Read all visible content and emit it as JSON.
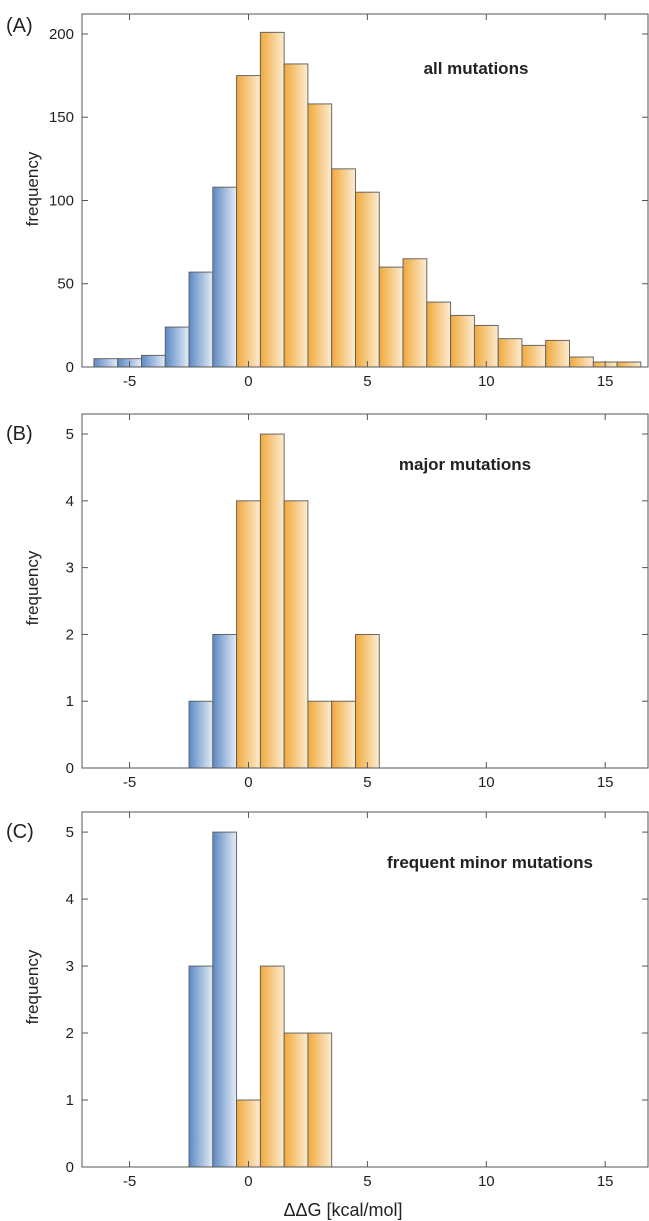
{
  "figure": {
    "colors": {
      "negative_bar_dark": "#5b89c4",
      "negative_bar_light": "#e4ecf6",
      "positive_bar_dark": "#f0a93c",
      "positive_bar_light": "#fcecd2",
      "bar_stroke": "#5a5a5a",
      "frame": "#555555"
    }
  },
  "chart_data": [
    {
      "type": "bar",
      "panel_label": "(A)",
      "title": "all mutations",
      "xlabel": "",
      "ylabel": "frequency",
      "xlim": [
        -7,
        16.8
      ],
      "ylim": [
        0,
        212
      ],
      "xticks": [
        -5,
        0,
        5,
        10,
        15
      ],
      "yticks": [
        0,
        50,
        100,
        150,
        200
      ],
      "grid": false,
      "bin_width": 1,
      "bins": [
        {
          "x0": -6.5,
          "x1": -5.5,
          "value": 5
        },
        {
          "x0": -5.5,
          "x1": -4.5,
          "value": 5
        },
        {
          "x0": -4.5,
          "x1": -3.5,
          "value": 7
        },
        {
          "x0": -3.5,
          "x1": -2.5,
          "value": 24
        },
        {
          "x0": -2.5,
          "x1": -1.5,
          "value": 57
        },
        {
          "x0": -1.5,
          "x1": -0.5,
          "value": 108
        },
        {
          "x0": -0.5,
          "x1": 0.5,
          "value": 175
        },
        {
          "x0": 0.5,
          "x1": 1.5,
          "value": 201
        },
        {
          "x0": 1.5,
          "x1": 2.5,
          "value": 182
        },
        {
          "x0": 2.5,
          "x1": 3.5,
          "value": 158
        },
        {
          "x0": 3.5,
          "x1": 4.5,
          "value": 119
        },
        {
          "x0": 4.5,
          "x1": 5.5,
          "value": 105
        },
        {
          "x0": 5.5,
          "x1": 6.5,
          "value": 60
        },
        {
          "x0": 6.5,
          "x1": 7.5,
          "value": 65
        },
        {
          "x0": 7.5,
          "x1": 8.5,
          "value": 39
        },
        {
          "x0": 8.5,
          "x1": 9.5,
          "value": 31
        },
        {
          "x0": 9.5,
          "x1": 10.5,
          "value": 25
        },
        {
          "x0": 10.5,
          "x1": 11.5,
          "value": 17
        },
        {
          "x0": 11.5,
          "x1": 12.5,
          "value": 13
        },
        {
          "x0": 12.5,
          "x1": 13.5,
          "value": 16
        },
        {
          "x0": 13.5,
          "x1": 14.5,
          "value": 6
        },
        {
          "x0": 14.5,
          "x1": 15.5,
          "value": 3
        },
        {
          "x0": 15.5,
          "x1": 16.5,
          "value": 3
        }
      ]
    },
    {
      "type": "bar",
      "panel_label": "(B)",
      "title": "major mutations",
      "xlabel": "",
      "ylabel": "frequency",
      "xlim": [
        -7,
        16.8
      ],
      "ylim": [
        0,
        5.3
      ],
      "xticks": [
        -5,
        0,
        5,
        10,
        15
      ],
      "yticks": [
        0,
        1,
        2,
        3,
        4,
        5
      ],
      "grid": false,
      "bin_width": 1,
      "bins": [
        {
          "x0": -2.5,
          "x1": -1.5,
          "value": 1
        },
        {
          "x0": -1.5,
          "x1": -0.5,
          "value": 2
        },
        {
          "x0": -0.5,
          "x1": 0.5,
          "value": 4
        },
        {
          "x0": 0.5,
          "x1": 1.5,
          "value": 5
        },
        {
          "x0": 1.5,
          "x1": 2.5,
          "value": 4
        },
        {
          "x0": 2.5,
          "x1": 3.5,
          "value": 1
        },
        {
          "x0": 3.5,
          "x1": 4.5,
          "value": 1
        },
        {
          "x0": 4.5,
          "x1": 5.5,
          "value": 2
        }
      ]
    },
    {
      "type": "bar",
      "panel_label": "(C)",
      "title": "frequent minor mutations",
      "xlabel": "ΔΔG [kcal/mol]",
      "ylabel": "frequency",
      "xlim": [
        -7,
        16.8
      ],
      "ylim": [
        0,
        5.3
      ],
      "xticks": [
        -5,
        0,
        5,
        10,
        15
      ],
      "yticks": [
        0,
        1,
        2,
        3,
        4,
        5
      ],
      "grid": false,
      "bin_width": 1,
      "bins": [
        {
          "x0": -2.5,
          "x1": -1.5,
          "value": 3
        },
        {
          "x0": -1.5,
          "x1": -0.5,
          "value": 5
        },
        {
          "x0": -0.5,
          "x1": 0.5,
          "value": 1
        },
        {
          "x0": 0.5,
          "x1": 1.5,
          "value": 3
        },
        {
          "x0": 1.5,
          "x1": 2.5,
          "value": 2
        },
        {
          "x0": 2.5,
          "x1": 3.5,
          "value": 2
        }
      ]
    }
  ]
}
